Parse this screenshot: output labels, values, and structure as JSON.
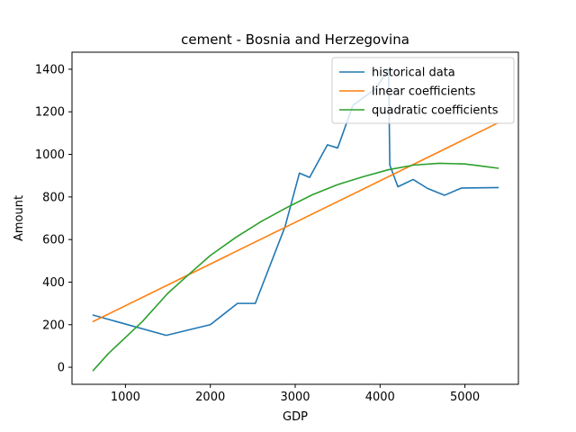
{
  "chart_data": {
    "type": "line",
    "title": "cement - Bosnia and Herzegovina",
    "xlabel": "GDP",
    "ylabel": "Amount",
    "xlim": [
      370,
      5630
    ],
    "ylim": [
      -80,
      1480
    ],
    "xticks": [
      1000,
      2000,
      3000,
      4000,
      5000
    ],
    "yticks": [
      0,
      200,
      400,
      600,
      800,
      1000,
      1200,
      1400
    ],
    "grid": false,
    "legend_position": "top-right",
    "series": [
      {
        "name": "historical data",
        "color": "#1f77b4",
        "x": [
          620,
          1480,
          2000,
          2320,
          2530,
          2880,
          3050,
          3170,
          3380,
          3500,
          3680,
          3950,
          4100,
          4115,
          4210,
          4390,
          4560,
          4760,
          4960,
          5390
        ],
        "y": [
          245,
          150,
          200,
          300,
          300,
          660,
          912,
          892,
          1045,
          1030,
          1230,
          1310,
          1400,
          950,
          848,
          882,
          840,
          808,
          842,
          844
        ]
      },
      {
        "name": "linear coefficients",
        "color": "#ff7f0e",
        "x": [
          620,
          5390
        ],
        "y": [
          215,
          1148
        ]
      },
      {
        "name": "quadratic coefficients",
        "color": "#2ca02c",
        "x": [
          620,
          800,
          1000,
          1200,
          1500,
          1800,
          2000,
          2300,
          2600,
          2900,
          3200,
          3500,
          3800,
          4100,
          4400,
          4700,
          5000,
          5200,
          5390
        ],
        "y": [
          -15,
          65,
          140,
          215,
          348,
          455,
          525,
          610,
          685,
          750,
          810,
          858,
          895,
          928,
          950,
          958,
          955,
          945,
          935
        ]
      }
    ]
  }
}
